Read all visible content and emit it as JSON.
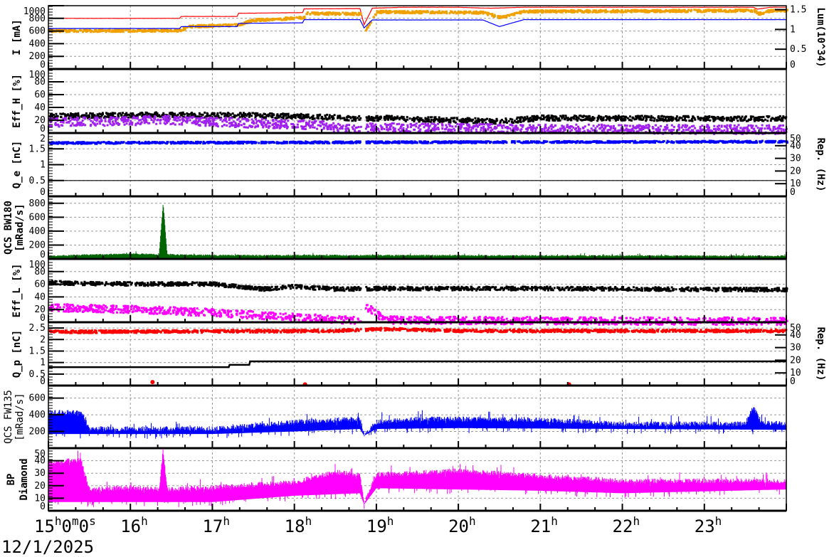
{
  "chart_data": [
    {
      "type": "line",
      "ylabel": "I [mA]",
      "ylim": [
        0,
        1000
      ],
      "yticks": [
        "0",
        "200",
        "400",
        "600",
        "800",
        "1000"
      ],
      "y2label": "Lum(10^34)",
      "y2lim": [
        0,
        1.6
      ],
      "y2ticks": [
        "0",
        "0.5",
        "1",
        "1.5"
      ],
      "series": [
        {
          "color": "#ff0000",
          "kind": "line",
          "axis": "left",
          "spread": 3,
          "points": [
            [
              15,
              800
            ],
            [
              16.6,
              800
            ],
            [
              16.62,
              830
            ],
            [
              17.3,
              830
            ],
            [
              17.32,
              880
            ],
            [
              18.1,
              890
            ],
            [
              18.12,
              950
            ],
            [
              18.8,
              955
            ],
            [
              18.85,
              700
            ],
            [
              18.95,
              960
            ],
            [
              19.3,
              975
            ],
            [
              20,
              975
            ],
            [
              20.4,
              960
            ],
            [
              20.8,
              975
            ],
            [
              23.6,
              975
            ],
            [
              23.65,
              945
            ],
            [
              23.8,
              975
            ],
            [
              24,
              975
            ]
          ]
        },
        {
          "color": "#f0a000",
          "kind": "scatter",
          "axis": "right",
          "spread": 0.03,
          "points": [
            [
              15,
              0.99
            ],
            [
              16.6,
              1.0
            ],
            [
              16.7,
              1.1
            ],
            [
              17.3,
              1.14
            ],
            [
              17.5,
              1.26
            ],
            [
              18.1,
              1.32
            ],
            [
              18.15,
              1.43
            ],
            [
              18.8,
              1.42
            ],
            [
              18.86,
              1.02
            ],
            [
              19,
              1.47
            ],
            [
              20.3,
              1.45
            ],
            [
              20.5,
              1.33
            ],
            [
              20.8,
              1.48
            ],
            [
              23.6,
              1.5
            ],
            [
              23.65,
              1.42
            ],
            [
              23.8,
              1.5
            ],
            [
              24,
              1.49
            ]
          ]
        },
        {
          "color": "#0000ff",
          "kind": "line",
          "axis": "left",
          "spread": 2,
          "points": [
            [
              15,
              640
            ],
            [
              16.6,
              640
            ],
            [
              16.62,
              670
            ],
            [
              17.3,
              670
            ],
            [
              17.32,
              720
            ],
            [
              18.1,
              730
            ],
            [
              18.12,
              780
            ],
            [
              18.8,
              780
            ],
            [
              18.85,
              650
            ],
            [
              18.95,
              775
            ],
            [
              20.3,
              775
            ],
            [
              20.5,
              670
            ],
            [
              20.8,
              780
            ],
            [
              24,
              780
            ]
          ]
        }
      ]
    },
    {
      "type": "scatter",
      "ylabel": "Eff_H [%]",
      "ylim": [
        0,
        100
      ],
      "yticks": [
        "0",
        "20",
        "40",
        "60",
        "80",
        "100"
      ],
      "series": [
        {
          "color": "#000000",
          "kind": "scatter",
          "axis": "left",
          "spread": 4,
          "points": [
            [
              15,
              28
            ],
            [
              16.4,
              30
            ],
            [
              17.5,
              29
            ],
            [
              18.3,
              27
            ],
            [
              18.8,
              24
            ],
            [
              19,
              25
            ],
            [
              20.5,
              20
            ],
            [
              21,
              25
            ],
            [
              24,
              24
            ]
          ]
        },
        {
          "color": "#a020f0",
          "kind": "scatter",
          "axis": "left",
          "spread": 7,
          "points": [
            [
              15,
              18
            ],
            [
              16.4,
              22
            ],
            [
              17.5,
              17
            ],
            [
              18.3,
              14
            ],
            [
              18.6,
              8
            ],
            [
              19,
              10
            ],
            [
              21,
              8
            ],
            [
              24,
              7
            ]
          ]
        }
      ]
    },
    {
      "type": "scatter",
      "ylabel": "Q_e [nC]",
      "ylim": [
        0,
        2
      ],
      "yticks": [
        "0",
        "0.5",
        "1",
        "1.5",
        "2"
      ],
      "y2label": "Rep. (Hz)",
      "y2lim": [
        0,
        50
      ],
      "y2ticks": [
        "0",
        "10",
        "20",
        "30",
        "40",
        "50"
      ],
      "series": [
        {
          "color": "#0000ff",
          "kind": "scatter",
          "axis": "left",
          "spread": 0.03,
          "points": [
            [
              15,
              1.72
            ],
            [
              19,
              1.74
            ],
            [
              24,
              1.76
            ]
          ]
        },
        {
          "color": "#000000",
          "kind": "line",
          "axis": "left",
          "spread": 0,
          "points": [
            [
              15,
              0.5
            ],
            [
              24,
              0.5
            ]
          ]
        }
      ]
    },
    {
      "type": "area",
      "ylabel": "QCS BW180 [mRad/s]",
      "ylim": [
        0,
        900
      ],
      "yticks": [
        "0",
        "200",
        "400",
        "600",
        "800"
      ],
      "series": [
        {
          "color": "#006400",
          "kind": "band",
          "axis": "left",
          "spread": 20,
          "points": [
            [
              15,
              40
            ],
            [
              16,
              70
            ],
            [
              16.35,
              60
            ],
            [
              16.4,
              800
            ],
            [
              16.45,
              60
            ],
            [
              17,
              50
            ],
            [
              24,
              40
            ]
          ]
        }
      ]
    },
    {
      "type": "scatter",
      "ylabel": "Eff_L [%]",
      "ylim": [
        0,
        100
      ],
      "yticks": [
        "0",
        "20",
        "40",
        "60",
        "80",
        "100"
      ],
      "series": [
        {
          "color": "#000000",
          "kind": "scatter",
          "axis": "left",
          "spread": 3,
          "points": [
            [
              15,
              64
            ],
            [
              16,
              62
            ],
            [
              17,
              62
            ],
            [
              17.6,
              54
            ],
            [
              18,
              58
            ],
            [
              18.5,
              54
            ],
            [
              19,
              55
            ],
            [
              21,
              55
            ],
            [
              24,
              53
            ]
          ]
        },
        {
          "color": "#ff00ff",
          "kind": "scatter",
          "axis": "left",
          "spread": 6,
          "points": [
            [
              15,
              25
            ],
            [
              16.5,
              20
            ],
            [
              17.5,
              13
            ],
            [
              18,
              10
            ],
            [
              18.8,
              4
            ],
            [
              18.85,
              28
            ],
            [
              19.1,
              5
            ],
            [
              21,
              4
            ],
            [
              24,
              3
            ]
          ]
        }
      ]
    },
    {
      "type": "scatter",
      "ylabel": "Q_p [nC]",
      "ylim": [
        0,
        2.75
      ],
      "yticks": [
        "0",
        "0.5",
        "1",
        "1.5",
        "2",
        "2.5"
      ],
      "y2label": "Rep. (Hz)",
      "y2lim": [
        0,
        50
      ],
      "y2ticks": [
        "0",
        "10",
        "20",
        "30",
        "40",
        "50"
      ],
      "series": [
        {
          "color": "#ff0000",
          "kind": "scatter",
          "axis": "left",
          "spread": 0.06,
          "points": [
            [
              15,
              2.38
            ],
            [
              18.5,
              2.42
            ],
            [
              19.1,
              2.5
            ],
            [
              20,
              2.42
            ],
            [
              24,
              2.42
            ]
          ]
        },
        {
          "color": "#000000",
          "kind": "step",
          "axis": "left",
          "spread": 0,
          "points": [
            [
              15,
              0.8
            ],
            [
              17.2,
              0.8
            ],
            [
              17.21,
              0.9
            ],
            [
              17.45,
              0.9
            ],
            [
              17.46,
              1.05
            ],
            [
              24,
              1.05
            ]
          ]
        },
        {
          "color": "#ff0000",
          "kind": "dots",
          "axis": "left",
          "spread": 0,
          "points": [
            [
              16.27,
              0.15
            ],
            [
              18.13,
              0.05
            ],
            [
              21.35,
              0.05
            ]
          ]
        }
      ]
    },
    {
      "type": "area",
      "ylabel": "QCS FW135 [mRad/s]",
      "ylim": [
        0,
        750
      ],
      "yticks": [
        "200",
        "400",
        "600"
      ],
      "series": [
        {
          "color": "#0000ff",
          "kind": "band",
          "axis": "left",
          "spread": 60,
          "base": [
            [
              15,
              170
            ],
            [
              17,
              170
            ],
            [
              18,
              200
            ],
            [
              18.8,
              230
            ],
            [
              18.85,
              150
            ],
            [
              19,
              230
            ],
            [
              20,
              240
            ],
            [
              22,
              230
            ],
            [
              24,
              220
            ]
          ],
          "points": [
            [
              15,
              420
            ],
            [
              15.4,
              420
            ],
            [
              15.5,
              220
            ],
            [
              17,
              220
            ],
            [
              18,
              300
            ],
            [
              18.8,
              340
            ],
            [
              18.85,
              150
            ],
            [
              19,
              300
            ],
            [
              19.5,
              340
            ],
            [
              21,
              330
            ],
            [
              22,
              280
            ],
            [
              23.5,
              280
            ],
            [
              23.6,
              480
            ],
            [
              23.7,
              290
            ],
            [
              24,
              280
            ]
          ]
        }
      ]
    },
    {
      "type": "area",
      "ylabel": "BP Diamond",
      "ylim": [
        0,
        50
      ],
      "yticks": [
        "0",
        "10",
        "20",
        "30",
        "40",
        "50"
      ],
      "series": [
        {
          "color": "#ff00ff",
          "kind": "band",
          "axis": "left",
          "spread": 4,
          "base": [
            [
              15,
              7
            ],
            [
              17,
              7
            ],
            [
              18,
              12
            ],
            [
              18.8,
              14
            ],
            [
              18.85,
              5
            ],
            [
              19,
              18
            ],
            [
              21,
              16
            ],
            [
              22,
              14
            ],
            [
              24,
              17
            ]
          ],
          "points": [
            [
              15,
              38
            ],
            [
              15.4,
              40
            ],
            [
              15.5,
              16
            ],
            [
              16,
              18
            ],
            [
              16.35,
              16
            ],
            [
              16.4,
              48
            ],
            [
              16.45,
              16
            ],
            [
              17,
              18
            ],
            [
              18,
              22
            ],
            [
              18.5,
              30
            ],
            [
              18.8,
              28
            ],
            [
              18.85,
              6
            ],
            [
              19,
              28
            ],
            [
              20,
              31
            ],
            [
              21,
              27
            ],
            [
              22,
              23
            ],
            [
              24,
              23
            ]
          ]
        }
      ]
    }
  ],
  "x_axis": {
    "xlim_hours": [
      15,
      24
    ],
    "tick_labels": [
      {
        "hour": 15,
        "label": "15",
        "sup": "h",
        "extra": "0",
        "sup2": "m",
        "extra2": "0",
        "sup3": "s"
      },
      {
        "hour": 16,
        "label": "16",
        "sup": "h"
      },
      {
        "hour": 17,
        "label": "17",
        "sup": "h"
      },
      {
        "hour": 18,
        "label": "18",
        "sup": "h"
      },
      {
        "hour": 19,
        "label": "19",
        "sup": "h"
      },
      {
        "hour": 20,
        "label": "20",
        "sup": "h"
      },
      {
        "hour": 21,
        "label": "21",
        "sup": "h"
      },
      {
        "hour": 22,
        "label": "22",
        "sup": "h"
      },
      {
        "hour": 23,
        "label": "23",
        "sup": "h"
      }
    ],
    "date": "12/1/2025"
  },
  "grid": true
}
